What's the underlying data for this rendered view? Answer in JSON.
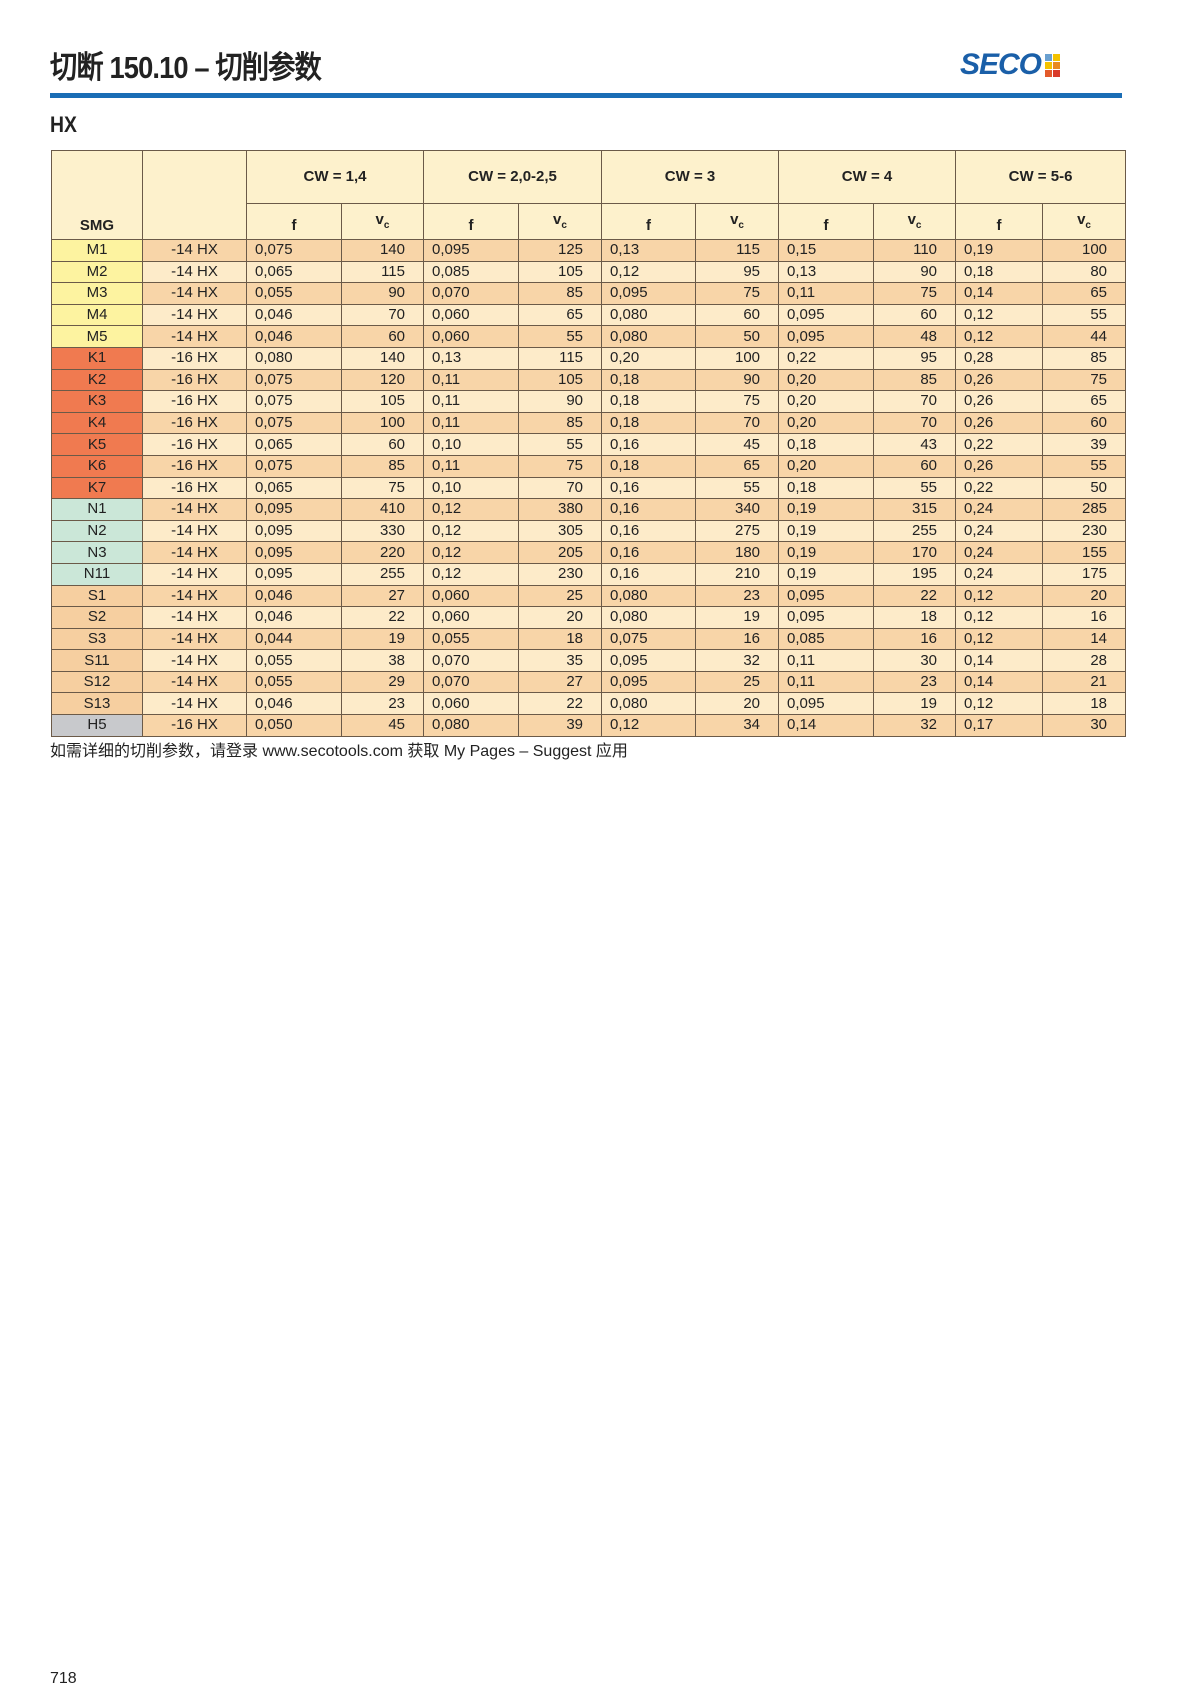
{
  "header": {
    "title": "切断 150.10 – 切削参数",
    "logo": "SECO",
    "section": "HX"
  },
  "colors": {
    "accent": "#1a6db5",
    "M": "#fdf3a0",
    "K": "#f07a50",
    "N": "#cbe7d8",
    "S": "#f6cfa0",
    "H": "#c8c9cc"
  },
  "table": {
    "smg_header": "SMG",
    "groups": [
      "CW = 1,4",
      "CW = 2,0-2,5",
      "CW = 3",
      "CW = 4",
      "CW = 5-6"
    ],
    "f_label": "f",
    "vc_label": "v",
    "vc_sub": "c",
    "rows": [
      {
        "smg": "M1",
        "code": "-14 HX",
        "vals": [
          "0,075",
          "140",
          "0,095",
          "125",
          "0,13",
          "115",
          "0,15",
          "110",
          "0,19",
          "100"
        ]
      },
      {
        "smg": "M2",
        "code": "-14 HX",
        "vals": [
          "0,065",
          "115",
          "0,085",
          "105",
          "0,12",
          "95",
          "0,13",
          "90",
          "0,18",
          "80"
        ]
      },
      {
        "smg": "M3",
        "code": "-14 HX",
        "vals": [
          "0,055",
          "90",
          "0,070",
          "85",
          "0,095",
          "75",
          "0,11",
          "75",
          "0,14",
          "65"
        ]
      },
      {
        "smg": "M4",
        "code": "-14 HX",
        "vals": [
          "0,046",
          "70",
          "0,060",
          "65",
          "0,080",
          "60",
          "0,095",
          "60",
          "0,12",
          "55"
        ]
      },
      {
        "smg": "M5",
        "code": "-14 HX",
        "vals": [
          "0,046",
          "60",
          "0,060",
          "55",
          "0,080",
          "50",
          "0,095",
          "48",
          "0,12",
          "44"
        ]
      },
      {
        "smg": "K1",
        "code": "-16 HX",
        "vals": [
          "0,080",
          "140",
          "0,13",
          "115",
          "0,20",
          "100",
          "0,22",
          "95",
          "0,28",
          "85"
        ]
      },
      {
        "smg": "K2",
        "code": "-16 HX",
        "vals": [
          "0,075",
          "120",
          "0,11",
          "105",
          "0,18",
          "90",
          "0,20",
          "85",
          "0,26",
          "75"
        ]
      },
      {
        "smg": "K3",
        "code": "-16 HX",
        "vals": [
          "0,075",
          "105",
          "0,11",
          "90",
          "0,18",
          "75",
          "0,20",
          "70",
          "0,26",
          "65"
        ]
      },
      {
        "smg": "K4",
        "code": "-16 HX",
        "vals": [
          "0,075",
          "100",
          "0,11",
          "85",
          "0,18",
          "70",
          "0,20",
          "70",
          "0,26",
          "60"
        ]
      },
      {
        "smg": "K5",
        "code": "-16 HX",
        "vals": [
          "0,065",
          "60",
          "0,10",
          "55",
          "0,16",
          "45",
          "0,18",
          "43",
          "0,22",
          "39"
        ]
      },
      {
        "smg": "K6",
        "code": "-16 HX",
        "vals": [
          "0,075",
          "85",
          "0,11",
          "75",
          "0,18",
          "65",
          "0,20",
          "60",
          "0,26",
          "55"
        ]
      },
      {
        "smg": "K7",
        "code": "-16 HX",
        "vals": [
          "0,065",
          "75",
          "0,10",
          "70",
          "0,16",
          "55",
          "0,18",
          "55",
          "0,22",
          "50"
        ]
      },
      {
        "smg": "N1",
        "code": "-14 HX",
        "vals": [
          "0,095",
          "410",
          "0,12",
          "380",
          "0,16",
          "340",
          "0,19",
          "315",
          "0,24",
          "285"
        ]
      },
      {
        "smg": "N2",
        "code": "-14 HX",
        "vals": [
          "0,095",
          "330",
          "0,12",
          "305",
          "0,16",
          "275",
          "0,19",
          "255",
          "0,24",
          "230"
        ]
      },
      {
        "smg": "N3",
        "code": "-14 HX",
        "vals": [
          "0,095",
          "220",
          "0,12",
          "205",
          "0,16",
          "180",
          "0,19",
          "170",
          "0,24",
          "155"
        ]
      },
      {
        "smg": "N11",
        "code": "-14 HX",
        "vals": [
          "0,095",
          "255",
          "0,12",
          "230",
          "0,16",
          "210",
          "0,19",
          "195",
          "0,24",
          "175"
        ]
      },
      {
        "smg": "S1",
        "code": "-14 HX",
        "vals": [
          "0,046",
          "27",
          "0,060",
          "25",
          "0,080",
          "23",
          "0,095",
          "22",
          "0,12",
          "20"
        ]
      },
      {
        "smg": "S2",
        "code": "-14 HX",
        "vals": [
          "0,046",
          "22",
          "0,060",
          "20",
          "0,080",
          "19",
          "0,095",
          "18",
          "0,12",
          "16"
        ]
      },
      {
        "smg": "S3",
        "code": "-14 HX",
        "vals": [
          "0,044",
          "19",
          "0,055",
          "18",
          "0,075",
          "16",
          "0,085",
          "16",
          "0,12",
          "14"
        ]
      },
      {
        "smg": "S11",
        "code": "-14 HX",
        "vals": [
          "0,055",
          "38",
          "0,070",
          "35",
          "0,095",
          "32",
          "0,11",
          "30",
          "0,14",
          "28"
        ]
      },
      {
        "smg": "S12",
        "code": "-14 HX",
        "vals": [
          "0,055",
          "29",
          "0,070",
          "27",
          "0,095",
          "25",
          "0,11",
          "23",
          "0,14",
          "21"
        ]
      },
      {
        "smg": "S13",
        "code": "-14 HX",
        "vals": [
          "0,046",
          "23",
          "0,060",
          "22",
          "0,080",
          "20",
          "0,095",
          "19",
          "0,12",
          "18"
        ]
      },
      {
        "smg": "H5",
        "code": "-16 HX",
        "vals": [
          "0,050",
          "45",
          "0,080",
          "39",
          "0,12",
          "34",
          "0,14",
          "32",
          "0,17",
          "30"
        ]
      }
    ]
  },
  "footnote": "如需详细的切削参数，请登录 www.secotools.com 获取 My Pages – Suggest 应用",
  "page_number": "718"
}
